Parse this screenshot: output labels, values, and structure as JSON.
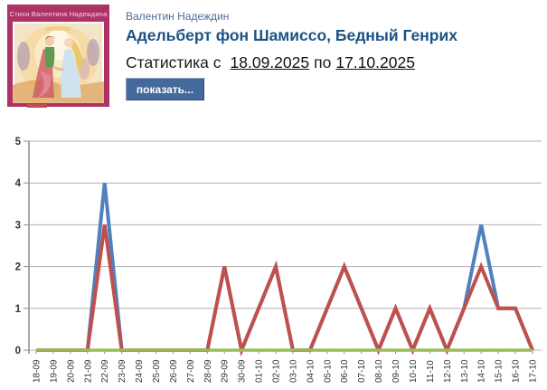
{
  "header": {
    "author_link": "Валентин Надеждин",
    "title": "Адельберт фон Шамиссо, Бедный Генрих",
    "stats_prefix": "Статистика с",
    "date_from": "18.09.2025",
    "stats_middle": "по",
    "date_to": "17.10.2025",
    "show_button": "показать..."
  },
  "cover": {
    "caption": "Стихи Валентина Надеждина"
  },
  "colors": {
    "title_blue": "#1b5384",
    "button_blue": "#44699b",
    "grid": "#b0b0b0",
    "axis": "#8c8c8c",
    "tick_text": "#333333"
  },
  "chart_data": {
    "type": "line",
    "title": "",
    "xlabel": "",
    "ylabel": "",
    "ylim": [
      0,
      5
    ],
    "yticks": [
      0,
      1,
      2,
      3,
      4,
      5
    ],
    "grid": true,
    "legend": "none",
    "categories": [
      "18-09",
      "19-09",
      "20-09",
      "21-09",
      "22-09",
      "23-09",
      "24-09",
      "25-09",
      "26-09",
      "27-09",
      "28-09",
      "29-09",
      "30-09",
      "01-10",
      "02-10",
      "03-10",
      "04-10",
      "05-10",
      "06-10",
      "07-10",
      "08-10",
      "09-10",
      "10-10",
      "11-10",
      "12-10",
      "13-10",
      "14-10",
      "15-10",
      "16-10",
      "17-10"
    ],
    "series": [
      {
        "name": "blue",
        "color": "#4f81bd",
        "width": 4,
        "values": [
          0,
          0,
          0,
          0,
          4,
          0,
          0,
          0,
          0,
          0,
          0,
          2,
          0,
          1,
          2,
          0,
          0,
          1,
          2,
          1,
          0,
          1,
          0,
          1,
          0,
          1,
          3,
          1,
          1,
          0
        ]
      },
      {
        "name": "red",
        "color": "#c0504d",
        "width": 4,
        "values": [
          0,
          0,
          0,
          0,
          3,
          0,
          0,
          0,
          0,
          0,
          0,
          2,
          0,
          1,
          2,
          0,
          0,
          1,
          2,
          1,
          0,
          1,
          0,
          1,
          0,
          1,
          2,
          1,
          1,
          0
        ]
      },
      {
        "name": "green",
        "color": "#9bbb59",
        "width": 3.5,
        "values": [
          0,
          0,
          0,
          0,
          0,
          0,
          0,
          0,
          0,
          0,
          0,
          0,
          0,
          0,
          0,
          0,
          0,
          0,
          0,
          0,
          0,
          0,
          0,
          0,
          0,
          0,
          0,
          0,
          0,
          0
        ]
      }
    ]
  }
}
